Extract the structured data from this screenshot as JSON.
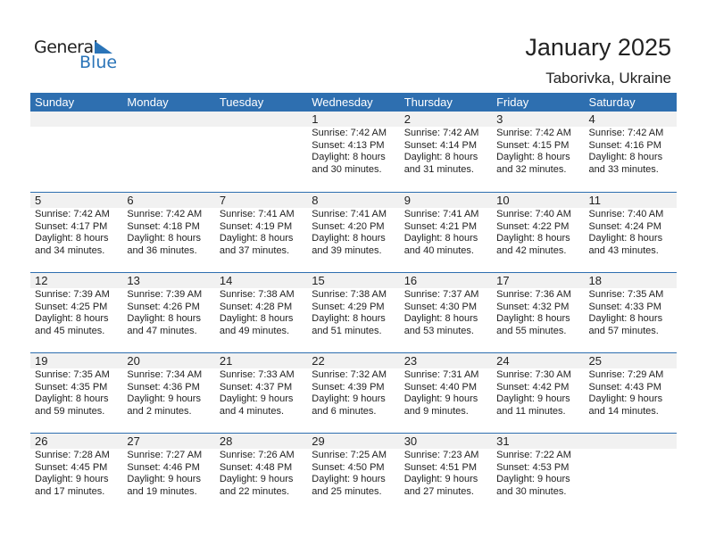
{
  "logo": {
    "line1": "General",
    "line2": "Blue"
  },
  "title": "January 2025",
  "location": "Taborivka, Ukraine",
  "weekdays": [
    "Sunday",
    "Monday",
    "Tuesday",
    "Wednesday",
    "Thursday",
    "Friday",
    "Saturday"
  ],
  "accent": "#2e6fb0",
  "weeks": [
    [
      null,
      null,
      null,
      {
        "day": "1",
        "sunrise": "Sunrise: 7:42 AM",
        "sunset": "Sunset: 4:13 PM",
        "daylight": "Daylight: 8 hours",
        "minutes": "and 30 minutes."
      },
      {
        "day": "2",
        "sunrise": "Sunrise: 7:42 AM",
        "sunset": "Sunset: 4:14 PM",
        "daylight": "Daylight: 8 hours",
        "minutes": "and 31 minutes."
      },
      {
        "day": "3",
        "sunrise": "Sunrise: 7:42 AM",
        "sunset": "Sunset: 4:15 PM",
        "daylight": "Daylight: 8 hours",
        "minutes": "and 32 minutes."
      },
      {
        "day": "4",
        "sunrise": "Sunrise: 7:42 AM",
        "sunset": "Sunset: 4:16 PM",
        "daylight": "Daylight: 8 hours",
        "minutes": "and 33 minutes."
      }
    ],
    [
      {
        "day": "5",
        "sunrise": "Sunrise: 7:42 AM",
        "sunset": "Sunset: 4:17 PM",
        "daylight": "Daylight: 8 hours",
        "minutes": "and 34 minutes."
      },
      {
        "day": "6",
        "sunrise": "Sunrise: 7:42 AM",
        "sunset": "Sunset: 4:18 PM",
        "daylight": "Daylight: 8 hours",
        "minutes": "and 36 minutes."
      },
      {
        "day": "7",
        "sunrise": "Sunrise: 7:41 AM",
        "sunset": "Sunset: 4:19 PM",
        "daylight": "Daylight: 8 hours",
        "minutes": "and 37 minutes."
      },
      {
        "day": "8",
        "sunrise": "Sunrise: 7:41 AM",
        "sunset": "Sunset: 4:20 PM",
        "daylight": "Daylight: 8 hours",
        "minutes": "and 39 minutes."
      },
      {
        "day": "9",
        "sunrise": "Sunrise: 7:41 AM",
        "sunset": "Sunset: 4:21 PM",
        "daylight": "Daylight: 8 hours",
        "minutes": "and 40 minutes."
      },
      {
        "day": "10",
        "sunrise": "Sunrise: 7:40 AM",
        "sunset": "Sunset: 4:22 PM",
        "daylight": "Daylight: 8 hours",
        "minutes": "and 42 minutes."
      },
      {
        "day": "11",
        "sunrise": "Sunrise: 7:40 AM",
        "sunset": "Sunset: 4:24 PM",
        "daylight": "Daylight: 8 hours",
        "minutes": "and 43 minutes."
      }
    ],
    [
      {
        "day": "12",
        "sunrise": "Sunrise: 7:39 AM",
        "sunset": "Sunset: 4:25 PM",
        "daylight": "Daylight: 8 hours",
        "minutes": "and 45 minutes."
      },
      {
        "day": "13",
        "sunrise": "Sunrise: 7:39 AM",
        "sunset": "Sunset: 4:26 PM",
        "daylight": "Daylight: 8 hours",
        "minutes": "and 47 minutes."
      },
      {
        "day": "14",
        "sunrise": "Sunrise: 7:38 AM",
        "sunset": "Sunset: 4:28 PM",
        "daylight": "Daylight: 8 hours",
        "minutes": "and 49 minutes."
      },
      {
        "day": "15",
        "sunrise": "Sunrise: 7:38 AM",
        "sunset": "Sunset: 4:29 PM",
        "daylight": "Daylight: 8 hours",
        "minutes": "and 51 minutes."
      },
      {
        "day": "16",
        "sunrise": "Sunrise: 7:37 AM",
        "sunset": "Sunset: 4:30 PM",
        "daylight": "Daylight: 8 hours",
        "minutes": "and 53 minutes."
      },
      {
        "day": "17",
        "sunrise": "Sunrise: 7:36 AM",
        "sunset": "Sunset: 4:32 PM",
        "daylight": "Daylight: 8 hours",
        "minutes": "and 55 minutes."
      },
      {
        "day": "18",
        "sunrise": "Sunrise: 7:35 AM",
        "sunset": "Sunset: 4:33 PM",
        "daylight": "Daylight: 8 hours",
        "minutes": "and 57 minutes."
      }
    ],
    [
      {
        "day": "19",
        "sunrise": "Sunrise: 7:35 AM",
        "sunset": "Sunset: 4:35 PM",
        "daylight": "Daylight: 8 hours",
        "minutes": "and 59 minutes."
      },
      {
        "day": "20",
        "sunrise": "Sunrise: 7:34 AM",
        "sunset": "Sunset: 4:36 PM",
        "daylight": "Daylight: 9 hours",
        "minutes": "and 2 minutes."
      },
      {
        "day": "21",
        "sunrise": "Sunrise: 7:33 AM",
        "sunset": "Sunset: 4:37 PM",
        "daylight": "Daylight: 9 hours",
        "minutes": "and 4 minutes."
      },
      {
        "day": "22",
        "sunrise": "Sunrise: 7:32 AM",
        "sunset": "Sunset: 4:39 PM",
        "daylight": "Daylight: 9 hours",
        "minutes": "and 6 minutes."
      },
      {
        "day": "23",
        "sunrise": "Sunrise: 7:31 AM",
        "sunset": "Sunset: 4:40 PM",
        "daylight": "Daylight: 9 hours",
        "minutes": "and 9 minutes."
      },
      {
        "day": "24",
        "sunrise": "Sunrise: 7:30 AM",
        "sunset": "Sunset: 4:42 PM",
        "daylight": "Daylight: 9 hours",
        "minutes": "and 11 minutes."
      },
      {
        "day": "25",
        "sunrise": "Sunrise: 7:29 AM",
        "sunset": "Sunset: 4:43 PM",
        "daylight": "Daylight: 9 hours",
        "minutes": "and 14 minutes."
      }
    ],
    [
      {
        "day": "26",
        "sunrise": "Sunrise: 7:28 AM",
        "sunset": "Sunset: 4:45 PM",
        "daylight": "Daylight: 9 hours",
        "minutes": "and 17 minutes."
      },
      {
        "day": "27",
        "sunrise": "Sunrise: 7:27 AM",
        "sunset": "Sunset: 4:46 PM",
        "daylight": "Daylight: 9 hours",
        "minutes": "and 19 minutes."
      },
      {
        "day": "28",
        "sunrise": "Sunrise: 7:26 AM",
        "sunset": "Sunset: 4:48 PM",
        "daylight": "Daylight: 9 hours",
        "minutes": "and 22 minutes."
      },
      {
        "day": "29",
        "sunrise": "Sunrise: 7:25 AM",
        "sunset": "Sunset: 4:50 PM",
        "daylight": "Daylight: 9 hours",
        "minutes": "and 25 minutes."
      },
      {
        "day": "30",
        "sunrise": "Sunrise: 7:23 AM",
        "sunset": "Sunset: 4:51 PM",
        "daylight": "Daylight: 9 hours",
        "minutes": "and 27 minutes."
      },
      {
        "day": "31",
        "sunrise": "Sunrise: 7:22 AM",
        "sunset": "Sunset: 4:53 PM",
        "daylight": "Daylight: 9 hours",
        "minutes": "and 30 minutes."
      },
      null
    ]
  ]
}
